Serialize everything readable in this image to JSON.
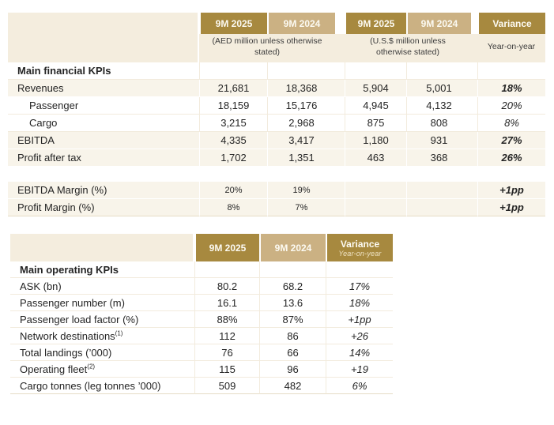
{
  "colors": {
    "gold": "#a7893f",
    "tan": "#cbb183",
    "cream": "#f4edde",
    "row_beige": "#f8f4ea"
  },
  "table1": {
    "name": "Main financial KPIs",
    "header": {
      "periods": [
        "9M 2025",
        "9M 2024",
        "9M 2025",
        "9M 2024"
      ],
      "subtitle_aed": "(AED million unless otherwise stated)",
      "subtitle_usd": "(U.S.$ million unless otherwise stated)",
      "variance_label": "Variance",
      "variance_sub": "Year-on-year"
    },
    "rows": [
      {
        "type": "section",
        "label": "Main financial KPIs",
        "values": [
          "",
          "",
          "",
          ""
        ],
        "variance": ""
      },
      {
        "type": "main",
        "label": "Revenues",
        "values": [
          "21,681",
          "18,368",
          "5,904",
          "5,001"
        ],
        "variance": "18%"
      },
      {
        "type": "sub",
        "label": "Passenger",
        "values": [
          "18,159",
          "15,176",
          "4,945",
          "4,132"
        ],
        "variance": "20%"
      },
      {
        "type": "sub",
        "label": "Cargo",
        "values": [
          "3,215",
          "2,968",
          "875",
          "808"
        ],
        "variance": "8%"
      },
      {
        "type": "main",
        "label": "EBITDA",
        "values": [
          "4,335",
          "3,417",
          "1,180",
          "931"
        ],
        "variance": "27%"
      },
      {
        "type": "main",
        "label": "Profit after tax",
        "values": [
          "1,702",
          "1,351",
          "463",
          "368"
        ],
        "variance": "26%"
      },
      {
        "type": "spacer"
      },
      {
        "type": "margin",
        "label": "EBITDA Margin (%)",
        "values": [
          "20%",
          "19%",
          "",
          ""
        ],
        "variance": "+1pp"
      },
      {
        "type": "margin",
        "label": "Profit Margin (%)",
        "values": [
          "8%",
          "7%",
          "",
          ""
        ],
        "variance": "+1pp"
      }
    ]
  },
  "table2": {
    "name": "Main operating KPIs",
    "header": {
      "periods": [
        "9M 2025",
        "9M 2024"
      ],
      "variance_label": "Variance",
      "variance_sub": "Year-on-year"
    },
    "rows": [
      {
        "type": "section",
        "label": "Main operating KPIs",
        "values": [
          "",
          ""
        ],
        "variance": ""
      },
      {
        "type": "data",
        "label": "ASK (bn)",
        "values": [
          "80.2",
          "68.2"
        ],
        "variance": "17%"
      },
      {
        "type": "data",
        "label": "Passenger number (m)",
        "values": [
          "16.1",
          "13.6"
        ],
        "variance": "18%"
      },
      {
        "type": "data",
        "label": "Passenger load factor (%)",
        "values": [
          "88%",
          "87%"
        ],
        "variance": "+1pp"
      },
      {
        "type": "data",
        "label": "Network destinations",
        "sup": "(1)",
        "values": [
          "112",
          "86"
        ],
        "variance": "+26"
      },
      {
        "type": "data",
        "label": "Total landings (’000)",
        "values": [
          "76",
          "66"
        ],
        "variance": "14%"
      },
      {
        "type": "data",
        "label": "Operating fleet",
        "sup": "(2)",
        "values": [
          "115",
          "96"
        ],
        "variance": "+19"
      },
      {
        "type": "data",
        "label": "Cargo tonnes (leg tonnes ’000)",
        "values": [
          "509",
          "482"
        ],
        "variance": "6%"
      }
    ]
  }
}
